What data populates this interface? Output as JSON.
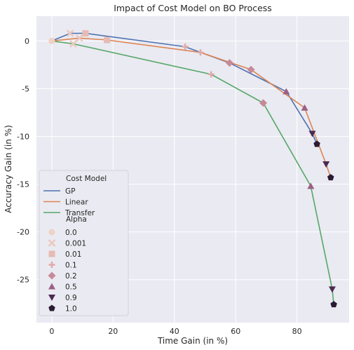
{
  "chart_data": {
    "type": "line",
    "title": "Impact of Cost Model on BO Process",
    "xlabel": "Time Gain (in %)",
    "ylabel": "Accuracy Gain (in %)",
    "xlim": [
      -5,
      97
    ],
    "ylim": [
      -29.5,
      2.6
    ],
    "xticks": [
      0,
      20,
      40,
      60,
      80
    ],
    "yticks": [
      0,
      -5,
      -10,
      -15,
      -20,
      -25
    ],
    "grid": true,
    "legend_position": "lower-left",
    "legend": {
      "hue_title": "Cost Model",
      "style_title": "Alpha"
    },
    "series": [
      {
        "name": "GP",
        "color": "#4c72b0",
        "points": [
          {
            "x": 0,
            "y": 0,
            "alpha": "0.0"
          },
          {
            "x": 6,
            "y": 0.8,
            "alpha": "0.001"
          },
          {
            "x": 11,
            "y": 0.8,
            "alpha": "0.01"
          },
          {
            "x": 43.5,
            "y": -0.6,
            "alpha": "0.1"
          },
          {
            "x": 58,
            "y": -2.3,
            "alpha": "0.2"
          },
          {
            "x": 76.5,
            "y": -5.3,
            "alpha": "0.5"
          },
          {
            "x": 85,
            "y": -9.7,
            "alpha": "0.9"
          },
          {
            "x": 86.5,
            "y": -10.8,
            "alpha": "1.0"
          }
        ]
      },
      {
        "name": "Linear",
        "color": "#dd8452",
        "points": [
          {
            "x": 0,
            "y": 0,
            "alpha": "0.0"
          },
          {
            "x": 9,
            "y": 0.3,
            "alpha": "0.001"
          },
          {
            "x": 18,
            "y": 0.1,
            "alpha": "0.01"
          },
          {
            "x": 48.5,
            "y": -1.2,
            "alpha": "0.1"
          },
          {
            "x": 65,
            "y": -3.0,
            "alpha": "0.2"
          },
          {
            "x": 82.5,
            "y": -7.0,
            "alpha": "0.5"
          },
          {
            "x": 89.5,
            "y": -12.9,
            "alpha": "0.9"
          },
          {
            "x": 91,
            "y": -14.3,
            "alpha": "1.0"
          }
        ]
      },
      {
        "name": "Transfer",
        "color": "#55a868",
        "points": [
          {
            "x": 0,
            "y": 0,
            "alpha": "0.0"
          },
          {
            "x": 7,
            "y": -0.3,
            "alpha": "0.001"
          },
          {
            "x": 52,
            "y": -3.5,
            "alpha": "0.1"
          },
          {
            "x": 69,
            "y": -6.5,
            "alpha": "0.2"
          },
          {
            "x": 84.5,
            "y": -15.2,
            "alpha": "0.5"
          },
          {
            "x": 91.5,
            "y": -26.0,
            "alpha": "0.9"
          },
          {
            "x": 92,
            "y": -27.6,
            "alpha": "1.0"
          }
        ]
      }
    ],
    "alpha_levels": [
      {
        "label": "0.0",
        "marker": "circle",
        "color": "#efd2c6"
      },
      {
        "label": "0.001",
        "marker": "x",
        "color": "#ebc9bf"
      },
      {
        "label": "0.01",
        "marker": "square",
        "color": "#e6bbb3"
      },
      {
        "label": "0.1",
        "marker": "plus",
        "color": "#dfaaa9"
      },
      {
        "label": "0.2",
        "marker": "diamond",
        "color": "#c78a98"
      },
      {
        "label": "0.5",
        "marker": "triangle-up",
        "color": "#9c5f84"
      },
      {
        "label": "0.9",
        "marker": "triangle-down",
        "color": "#4a2a52"
      },
      {
        "label": "1.0",
        "marker": "pentagon",
        "color": "#2a1b32"
      }
    ]
  }
}
